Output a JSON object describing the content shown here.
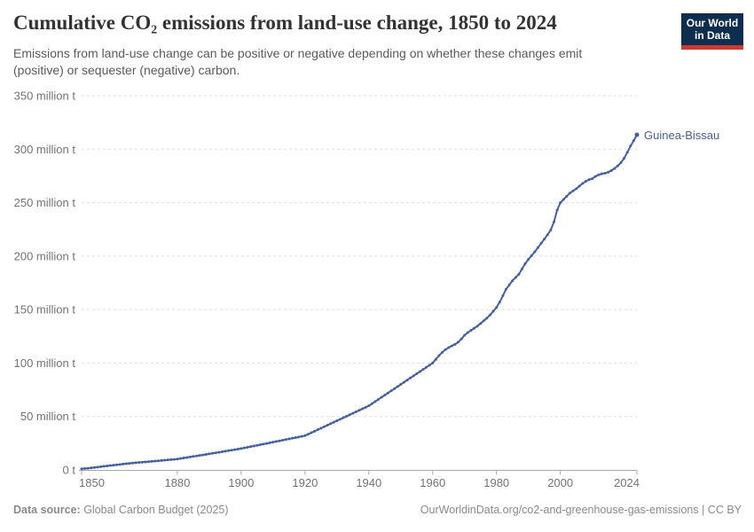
{
  "header": {
    "title": "Cumulative CO₂ emissions from land-use change, 1850 to 2024",
    "subtitle": "Emissions from land-use change can be positive or negative depending on whether these changes emit (positive) or sequester (negative) carbon."
  },
  "logo": {
    "line1": "Our World",
    "line2": "in Data",
    "bg_color": "#0f2e4f",
    "stripe_color": "#d0392f",
    "text_color": "#ffffff"
  },
  "chart_data": {
    "type": "line",
    "title": "Cumulative CO₂ emissions from land-use change, 1850 to 2024",
    "unit": "million t",
    "xlim": [
      1850,
      2024
    ],
    "ylim": [
      0,
      350
    ],
    "grid": "horizontal-dashed",
    "legend_position": "end-of-line-label",
    "x_ticks": [
      1850,
      1880,
      1900,
      1920,
      1940,
      1960,
      1980,
      2000,
      2024
    ],
    "y_ticks": [
      {
        "value": 0,
        "label": "0 t"
      },
      {
        "value": 50,
        "label": "50 million t"
      },
      {
        "value": 100,
        "label": "100 million t"
      },
      {
        "value": 150,
        "label": "150 million t"
      },
      {
        "value": 200,
        "label": "200 million t"
      },
      {
        "value": 250,
        "label": "250 million t"
      },
      {
        "value": 300,
        "label": "300 million t"
      },
      {
        "value": 350,
        "label": "350 million t"
      }
    ],
    "series": [
      {
        "name": "Guinea-Bissau",
        "color": "#45619D",
        "x_start": 1850,
        "x_step": 1,
        "values": [
          1.0,
          1.3,
          1.6,
          2.0,
          2.3,
          2.6,
          3.0,
          3.4,
          3.7,
          4.1,
          4.5,
          4.8,
          5.1,
          5.5,
          5.8,
          6.1,
          6.4,
          6.7,
          7.0,
          7.2,
          7.5,
          7.8,
          8.0,
          8.3,
          8.5,
          8.8,
          9.1,
          9.4,
          9.6,
          9.9,
          10.2,
          10.7,
          11.2,
          11.6,
          12.1,
          12.6,
          13.1,
          13.6,
          14.0,
          14.5,
          15.0,
          15.5,
          16.0,
          16.5,
          17.0,
          17.5,
          18.0,
          18.5,
          19.0,
          19.5,
          20.0,
          20.6,
          21.2,
          21.8,
          22.4,
          23.0,
          23.6,
          24.2,
          24.8,
          25.4,
          26.0,
          26.6,
          27.2,
          27.8,
          28.4,
          29.0,
          29.6,
          30.2,
          30.8,
          31.4,
          32.0,
          33.4,
          34.8,
          36.2,
          37.6,
          39.0,
          40.4,
          41.8,
          43.2,
          44.6,
          46.0,
          47.4,
          48.8,
          50.2,
          51.6,
          53.0,
          54.4,
          55.8,
          57.2,
          58.6,
          60.0,
          62.0,
          64.0,
          66.0,
          68.0,
          70.0,
          72.0,
          74.0,
          76.0,
          78.0,
          80.0,
          82.0,
          84.0,
          86.0,
          88.0,
          90.0,
          92.0,
          94.0,
          96.0,
          98.0,
          100.0,
          103.5,
          107.0,
          110.0,
          112.5,
          114.5,
          116.0,
          117.5,
          119.5,
          122.5,
          126.0,
          128.5,
          130.5,
          132.5,
          134.5,
          137.0,
          139.5,
          142.0,
          145.0,
          148.5,
          152.0,
          157.0,
          163.0,
          169.0,
          173.0,
          177.0,
          180.0,
          183.0,
          188.0,
          193.0,
          197.0,
          200.5,
          204.0,
          208.0,
          212.0,
          216.0,
          220.0,
          224.5,
          232.0,
          243.0,
          250.0,
          253.0,
          256.0,
          259.0,
          261.0,
          263.0,
          265.5,
          268.0,
          270.0,
          271.5,
          272.5,
          274.5,
          276.0,
          277.0,
          277.5,
          278.5,
          280.0,
          282.0,
          284.5,
          287.5,
          291.5,
          297.0,
          303.0,
          308.0,
          313.5
        ]
      }
    ]
  },
  "footer": {
    "source_label": "Data source:",
    "source_text": " Global Carbon Budget (2025)",
    "attribution": "OurWorldinData.org/co2-and-greenhouse-gas-emissions | CC BY"
  },
  "style": {
    "grid_color": "#dedede",
    "axis_color": "#a8a8a8",
    "tick_label_color": "#737373"
  }
}
